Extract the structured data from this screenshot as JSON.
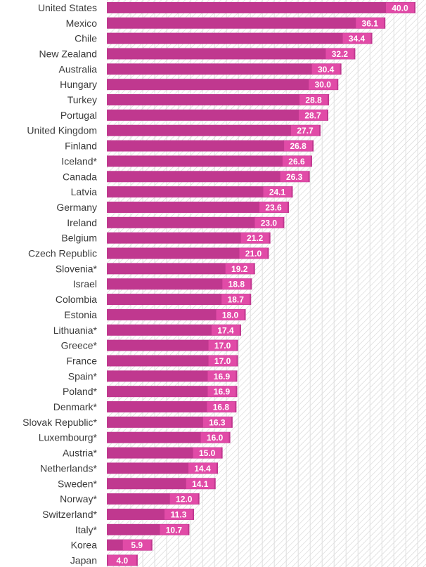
{
  "colors": {
    "bar": "#c0388f",
    "label_box": "#e14ba7",
    "grid": "#dedede",
    "hatch": "#d2d2d2"
  },
  "chart_data": {
    "type": "bar",
    "orientation": "horizontal",
    "categories": [
      "United States",
      "Mexico",
      "Chile",
      "New Zealand",
      "Australia",
      "Hungary",
      "Turkey",
      "Portugal",
      "United Kingdom",
      "Finland",
      "Iceland*",
      "Canada",
      "Latvia",
      "Germany",
      "Ireland",
      "Belgium",
      "Czech Republic",
      "Slovenia*",
      "Israel",
      "Colombia",
      "Estonia",
      "Lithuania*",
      "Greece*",
      "France",
      "Spain*",
      "Poland*",
      "Denmark*",
      "Slovak Republic*",
      "Luxembourg*",
      "Austria*",
      "Netherlands*",
      "Sweden*",
      "Norway*",
      "Switzerland*",
      "Italy*",
      "Korea",
      "Japan"
    ],
    "values": [
      40.0,
      36.1,
      34.4,
      32.2,
      30.4,
      30.0,
      28.8,
      28.7,
      27.7,
      26.8,
      26.6,
      26.3,
      24.1,
      23.6,
      23.0,
      21.2,
      21.0,
      19.2,
      18.8,
      18.7,
      18.0,
      17.4,
      17.0,
      17.0,
      16.9,
      16.9,
      16.8,
      16.3,
      16.0,
      15.0,
      14.4,
      14.1,
      12.0,
      11.3,
      10.7,
      5.9,
      4.0
    ],
    "value_labels": [
      "40.0",
      "36.1",
      "34.4",
      "32.2",
      "30.4",
      "30.0",
      "28.8",
      "28.7",
      "27.7",
      "26.8",
      "26.6",
      "26.3",
      "24.1",
      "23.6",
      "23.0",
      "21.2",
      "21.0",
      "19.2",
      "18.8",
      "18.7",
      "18.0",
      "17.4",
      "17.0",
      "17.0",
      "16.9",
      "16.9",
      "16.8",
      "16.3",
      "16.0",
      "15.0",
      "14.4",
      "14.1",
      "12.0",
      "11.3",
      "10.7",
      "5.9",
      "4.0"
    ],
    "title": "",
    "xlabel": "",
    "ylabel": "",
    "xlim": [
      0,
      41
    ],
    "grid": true,
    "legend": "none"
  }
}
